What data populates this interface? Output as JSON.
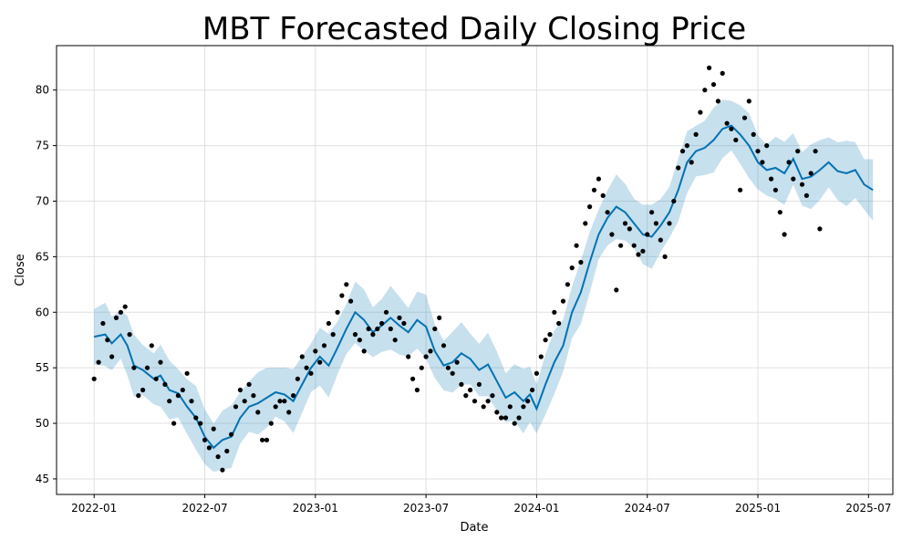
{
  "chart_data": {
    "type": "line",
    "title": "MBT Forecasted Daily Closing Price",
    "xlabel": "Date",
    "ylabel": "Close",
    "x_unit": "years since 2022-01-01",
    "xlim": [
      -0.17,
      3.61
    ],
    "ylim": [
      43.6,
      84.0
    ],
    "grid": true,
    "x_ticks": [
      {
        "t": 0.0,
        "label": "2022-01"
      },
      {
        "t": 0.5,
        "label": "2022-07"
      },
      {
        "t": 1.0,
        "label": "2023-01"
      },
      {
        "t": 1.5,
        "label": "2023-07"
      },
      {
        "t": 2.0,
        "label": "2024-01"
      },
      {
        "t": 2.5,
        "label": "2024-07"
      },
      {
        "t": 3.0,
        "label": "2025-01"
      },
      {
        "t": 3.5,
        "label": "2025-07"
      }
    ],
    "y_ticks": [
      45,
      50,
      55,
      60,
      65,
      70,
      75,
      80
    ],
    "colors": {
      "forecast": "#0072B2",
      "band": "#0072B2",
      "actual": "#000000",
      "grid": "#e0e0e0"
    },
    "forecast": {
      "name": "yhat",
      "t": [
        0.0,
        0.05,
        0.08,
        0.12,
        0.15,
        0.18,
        0.22,
        0.27,
        0.3,
        0.34,
        0.38,
        0.42,
        0.46,
        0.5,
        0.54,
        0.58,
        0.62,
        0.66,
        0.7,
        0.74,
        0.78,
        0.82,
        0.86,
        0.9,
        0.94,
        0.98,
        1.02,
        1.06,
        1.1,
        1.14,
        1.18,
        1.22,
        1.26,
        1.3,
        1.34,
        1.38,
        1.42,
        1.46,
        1.5,
        1.54,
        1.58,
        1.62,
        1.66,
        1.7,
        1.74,
        1.78,
        1.82,
        1.86,
        1.9,
        1.94,
        1.97,
        2.0,
        2.04,
        2.08,
        2.12,
        2.16,
        2.2,
        2.24,
        2.28,
        2.32,
        2.36,
        2.4,
        2.44,
        2.48,
        2.52,
        2.56,
        2.6,
        2.64,
        2.68,
        2.72,
        2.76,
        2.8,
        2.84,
        2.88,
        2.92,
        2.96,
        3.0,
        3.04,
        3.08,
        3.12,
        3.16,
        3.2,
        3.24,
        3.28,
        3.32,
        3.36,
        3.4,
        3.44,
        3.48,
        3.52
      ],
      "yhat": [
        57.8,
        58.0,
        57.2,
        58.0,
        57.0,
        55.2,
        54.8,
        54.0,
        54.3,
        53.0,
        52.7,
        51.5,
        50.5,
        48.8,
        47.8,
        48.5,
        48.8,
        50.5,
        51.5,
        51.8,
        52.3,
        52.8,
        52.6,
        52.0,
        53.5,
        55.0,
        56.0,
        55.2,
        56.8,
        58.5,
        60.0,
        59.3,
        58.2,
        58.8,
        59.5,
        58.8,
        58.2,
        59.3,
        58.7,
        56.5,
        55.2,
        55.5,
        56.3,
        55.8,
        54.8,
        55.3,
        53.8,
        52.3,
        52.8,
        52.0,
        52.6,
        51.3,
        53.5,
        55.5,
        57.0,
        60.0,
        61.8,
        64.5,
        67.0,
        68.5,
        69.5,
        69.0,
        68.0,
        67.0,
        66.8,
        67.8,
        69.0,
        71.0,
        73.5,
        74.5,
        74.8,
        75.5,
        76.5,
        76.8,
        76.0,
        75.0,
        73.5,
        72.8,
        73.0,
        72.5,
        73.8,
        72.0,
        72.2,
        72.8,
        73.5,
        72.7,
        72.5,
        72.8,
        71.5,
        71.0
      ],
      "band_halfwidth": 2.5,
      "band_halfwidth_end": 2.6
    },
    "actual": {
      "name": "y",
      "t_start": 0.0,
      "t_step": 0.02,
      "values": [
        54.0,
        55.5,
        59.0,
        57.5,
        56.0,
        59.5,
        60.0,
        60.5,
        58.0,
        55.0,
        52.5,
        53.0,
        55.0,
        57.0,
        54.0,
        55.5,
        53.5,
        52.0,
        50.0,
        52.5,
        53.0,
        54.5,
        52.0,
        50.5,
        50.0,
        48.5,
        47.8,
        49.5,
        47.0,
        45.8,
        47.5,
        49.0,
        51.5,
        53.0,
        52.0,
        53.5,
        52.5,
        51.0,
        48.5,
        48.5,
        50.0,
        51.5,
        52.0,
        52.0,
        51.0,
        52.5,
        54.0,
        56.0,
        55.0,
        54.5,
        56.5,
        55.5,
        57.0,
        59.0,
        58.0,
        60.0,
        61.5,
        62.5,
        61.0,
        58.0,
        57.5,
        56.5,
        58.5,
        58.0,
        58.5,
        59.0,
        60.0,
        58.5,
        57.5,
        59.5,
        59.0,
        56.0,
        54.0,
        53.0,
        55.0,
        56.0,
        56.5,
        58.5,
        59.5,
        57.0,
        55.0,
        54.5,
        55.5,
        53.5,
        52.5,
        53.0,
        52.0,
        53.5,
        51.5,
        52.0,
        52.5,
        51.0,
        50.5,
        50.5,
        51.5,
        50.0,
        50.5,
        51.5,
        52.0,
        53.0,
        54.5,
        56.0,
        57.5,
        58.0,
        60.0,
        59.0,
        61.0,
        62.5,
        64.0,
        66.0,
        64.5,
        68.0,
        69.5,
        71.0,
        72.0,
        70.5,
        69.0,
        67.0,
        62.0,
        66.0,
        68.0,
        67.5,
        66.0,
        65.2,
        65.5,
        67.0,
        69.0,
        68.0,
        66.5,
        65.0,
        68.0,
        70.0,
        73.0,
        74.5,
        75.0,
        73.5,
        76.0,
        78.0,
        80.0,
        82.0,
        80.5,
        79.0,
        81.5,
        77.0,
        76.5,
        75.5,
        71.0,
        77.5,
        79.0,
        76.0,
        74.5,
        73.5,
        75.0,
        72.0,
        71.0,
        69.0,
        67.0,
        73.5,
        72.0,
        74.5,
        71.5,
        70.5,
        72.5,
        74.5,
        67.5
      ]
    }
  }
}
